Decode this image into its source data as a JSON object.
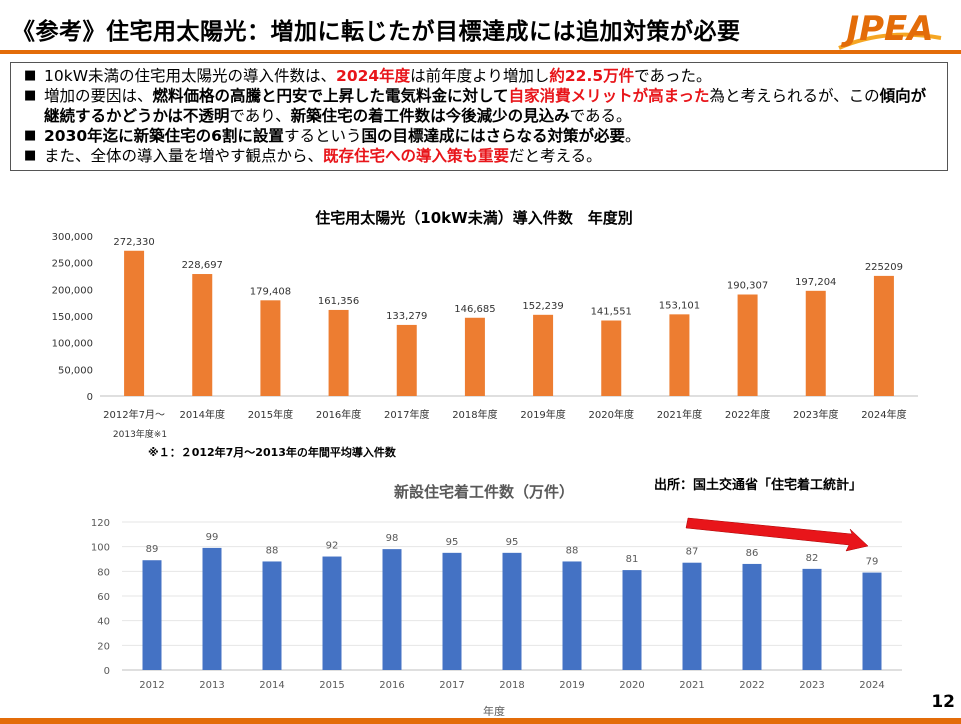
{
  "header": {
    "title": "《参考》住宅用太陽光：増加に転じたが目標達成には追加対策が必要",
    "logo_text": "JPEA",
    "accent_color": "#e36c09",
    "page_number": "12"
  },
  "bullets": [
    [
      {
        "t": "10kW未満の住宅用太陽光の導入件数は、"
      },
      {
        "t": "2024年度",
        "s": "red"
      },
      {
        "t": "は前年度より増加し"
      },
      {
        "t": "約22.5万件",
        "s": "red"
      },
      {
        "t": "であった。"
      }
    ],
    [
      {
        "t": "増加の要因は、"
      },
      {
        "t": "燃料価格の高騰と円安で上昇した電気料金に対して",
        "s": "b"
      },
      {
        "t": "自家消費メリットが高まった",
        "s": "red"
      },
      {
        "t": "為と考えられるが、この"
      },
      {
        "t": "傾向が継続するかどうかは不透明",
        "s": "b"
      },
      {
        "t": "であり、"
      },
      {
        "t": "新築住宅の着工件数は今後減少の見込み",
        "s": "b"
      },
      {
        "t": "である。"
      }
    ],
    [
      {
        "t": "2030年迄に新築住宅の6割に設置",
        "s": "b"
      },
      {
        "t": "するという"
      },
      {
        "t": "国の目標達成にはさらなる対策が必要",
        "s": "b"
      },
      {
        "t": "。"
      }
    ],
    [
      {
        "t": "また、全体の導入量を増やす観点から、"
      },
      {
        "t": "既存住宅への導入策も重要",
        "s": "red"
      },
      {
        "t": "だと考える。"
      }
    ]
  ],
  "chart_data": [
    {
      "type": "bar",
      "title": "住宅用太陽光（10kW未満）導入件数　年度別",
      "categories": [
        "2012年7月～",
        "2014年度",
        "2015年度",
        "2016年度",
        "2017年度",
        "2018年度",
        "2019年度",
        "2020年度",
        "2021年度",
        "2022年度",
        "2023年度",
        "2024年度"
      ],
      "first_category_second_line": "2013年度※1",
      "values": [
        272330,
        228697,
        179408,
        161356,
        133279,
        146685,
        152239,
        141551,
        153101,
        190307,
        197204,
        225209
      ],
      "value_labels": [
        "272,330",
        "228,697",
        "179,408",
        "161,356",
        "133,279",
        "146,685",
        "152,239",
        "141,551",
        "153,101",
        "190,307",
        "197,204",
        "225209"
      ],
      "yticks": [
        "300,000",
        "250,000",
        "200,000",
        "150,000",
        "100,000",
        "50,000",
        "0"
      ],
      "ylim": [
        0,
        300000
      ],
      "grid": false,
      "bar_color": "#ed7d31",
      "footnote": "※１：２012年7月～2013年の年間平均導入件数"
    },
    {
      "type": "bar",
      "title": "新設住宅着工件数（万件）",
      "categories": [
        "2012",
        "2013",
        "2014",
        "2015",
        "2016",
        "2017",
        "2018",
        "2019",
        "2020",
        "2021",
        "2022",
        "2023",
        "2024"
      ],
      "values": [
        89,
        99,
        88,
        92,
        98,
        95,
        95,
        88,
        81,
        87,
        86,
        82,
        79
      ],
      "yticks": [
        "120",
        "100",
        "80",
        "60",
        "40",
        "20",
        "0"
      ],
      "ylim": [
        0,
        120
      ],
      "xlabel": "年度",
      "grid": true,
      "bar_color": "#4472c4",
      "trend_arrow_color": "#e8151a",
      "source": "出所：国土交通省「住宅着工統計」"
    }
  ]
}
